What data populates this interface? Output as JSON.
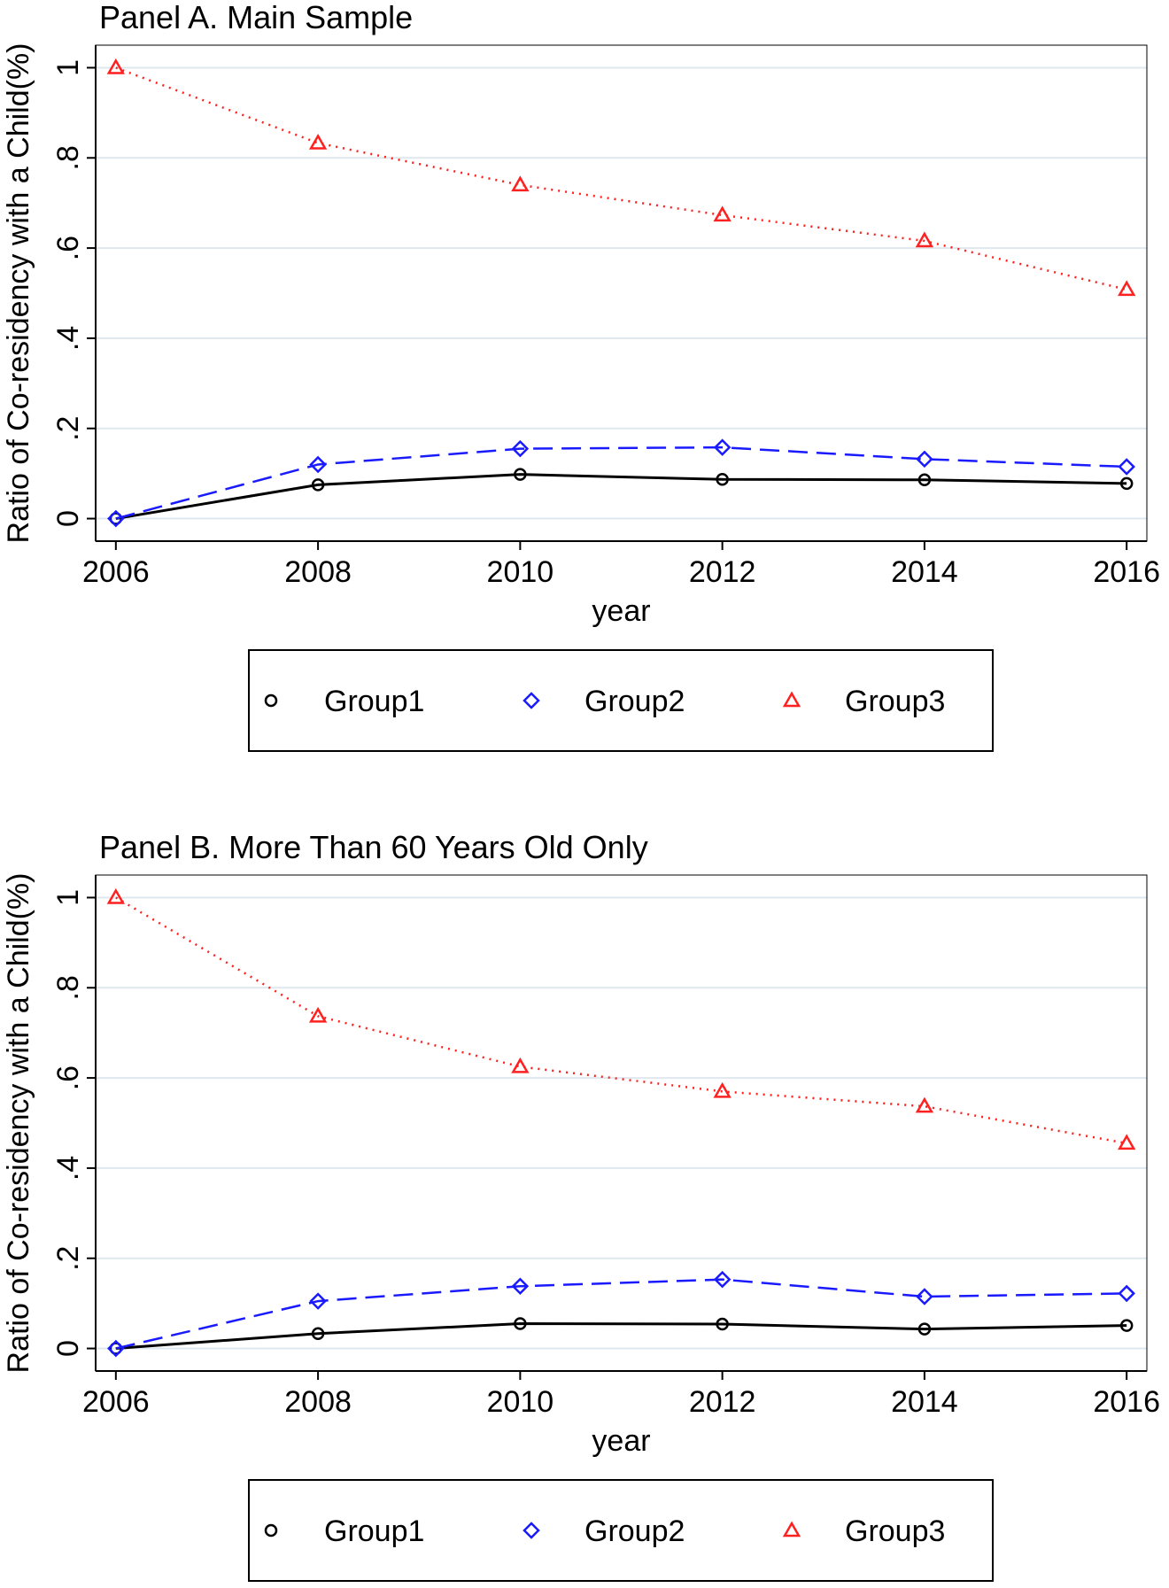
{
  "chart_data": [
    {
      "type": "line",
      "title": "Panel A. Main Sample",
      "xlabel": "year",
      "ylabel": "Ratio of Co-residency with a Child(%)",
      "x": [
        2006,
        2008,
        2010,
        2012,
        2014,
        2016
      ],
      "series": [
        {
          "name": "Group1",
          "color": "#000000",
          "line_style": "solid",
          "marker": "circle",
          "values": [
            0,
            0.075,
            0.098,
            0.087,
            0.086,
            0.078
          ]
        },
        {
          "name": "Group2",
          "color": "#1a1aff",
          "line_style": "dashed",
          "marker": "diamond",
          "values": [
            0,
            0.12,
            0.155,
            0.158,
            0.132,
            0.115
          ]
        },
        {
          "name": "Group3",
          "color": "#ff2020",
          "line_style": "dotted",
          "marker": "triangle",
          "values": [
            1,
            0.833,
            0.74,
            0.673,
            0.616,
            0.508
          ]
        }
      ],
      "xlim": [
        2005.8,
        2016.2
      ],
      "ylim": [
        -0.05,
        1.05
      ],
      "xticks": [
        2006,
        2008,
        2010,
        2012,
        2014,
        2016
      ],
      "yticks": [
        0,
        {
          "value": 0.2,
          "label": ".2"
        },
        {
          "value": 0.4,
          "label": ".4"
        },
        {
          "value": 0.6,
          "label": ".6"
        },
        {
          "value": 0.8,
          "label": ".8"
        },
        1
      ],
      "grid": true,
      "legend": "bottom"
    },
    {
      "type": "line",
      "title": "Panel B. More Than 60 Years Old Only",
      "xlabel": "year",
      "ylabel": "Ratio of Co-residency with a Child(%)",
      "x": [
        2006,
        2008,
        2010,
        2012,
        2014,
        2016
      ],
      "series": [
        {
          "name": "Group1",
          "color": "#000000",
          "line_style": "solid",
          "marker": "circle",
          "values": [
            0,
            0.033,
            0.055,
            0.054,
            0.043,
            0.051
          ]
        },
        {
          "name": "Group2",
          "color": "#1a1aff",
          "line_style": "dashed",
          "marker": "diamond",
          "values": [
            0,
            0.105,
            0.138,
            0.153,
            0.115,
            0.122
          ]
        },
        {
          "name": "Group3",
          "color": "#ff2020",
          "line_style": "dotted",
          "marker": "triangle",
          "values": [
            1,
            0.737,
            0.625,
            0.57,
            0.537,
            0.455
          ]
        }
      ],
      "xlim": [
        2005.8,
        2016.2
      ],
      "ylim": [
        -0.05,
        1.05
      ],
      "xticks": [
        2006,
        2008,
        2010,
        2012,
        2014,
        2016
      ],
      "yticks": [
        0,
        {
          "value": 0.2,
          "label": ".2"
        },
        {
          "value": 0.4,
          "label": ".4"
        },
        {
          "value": 0.6,
          "label": ".6"
        },
        {
          "value": 0.8,
          "label": ".8"
        },
        1
      ],
      "grid": true,
      "legend": "bottom"
    }
  ]
}
